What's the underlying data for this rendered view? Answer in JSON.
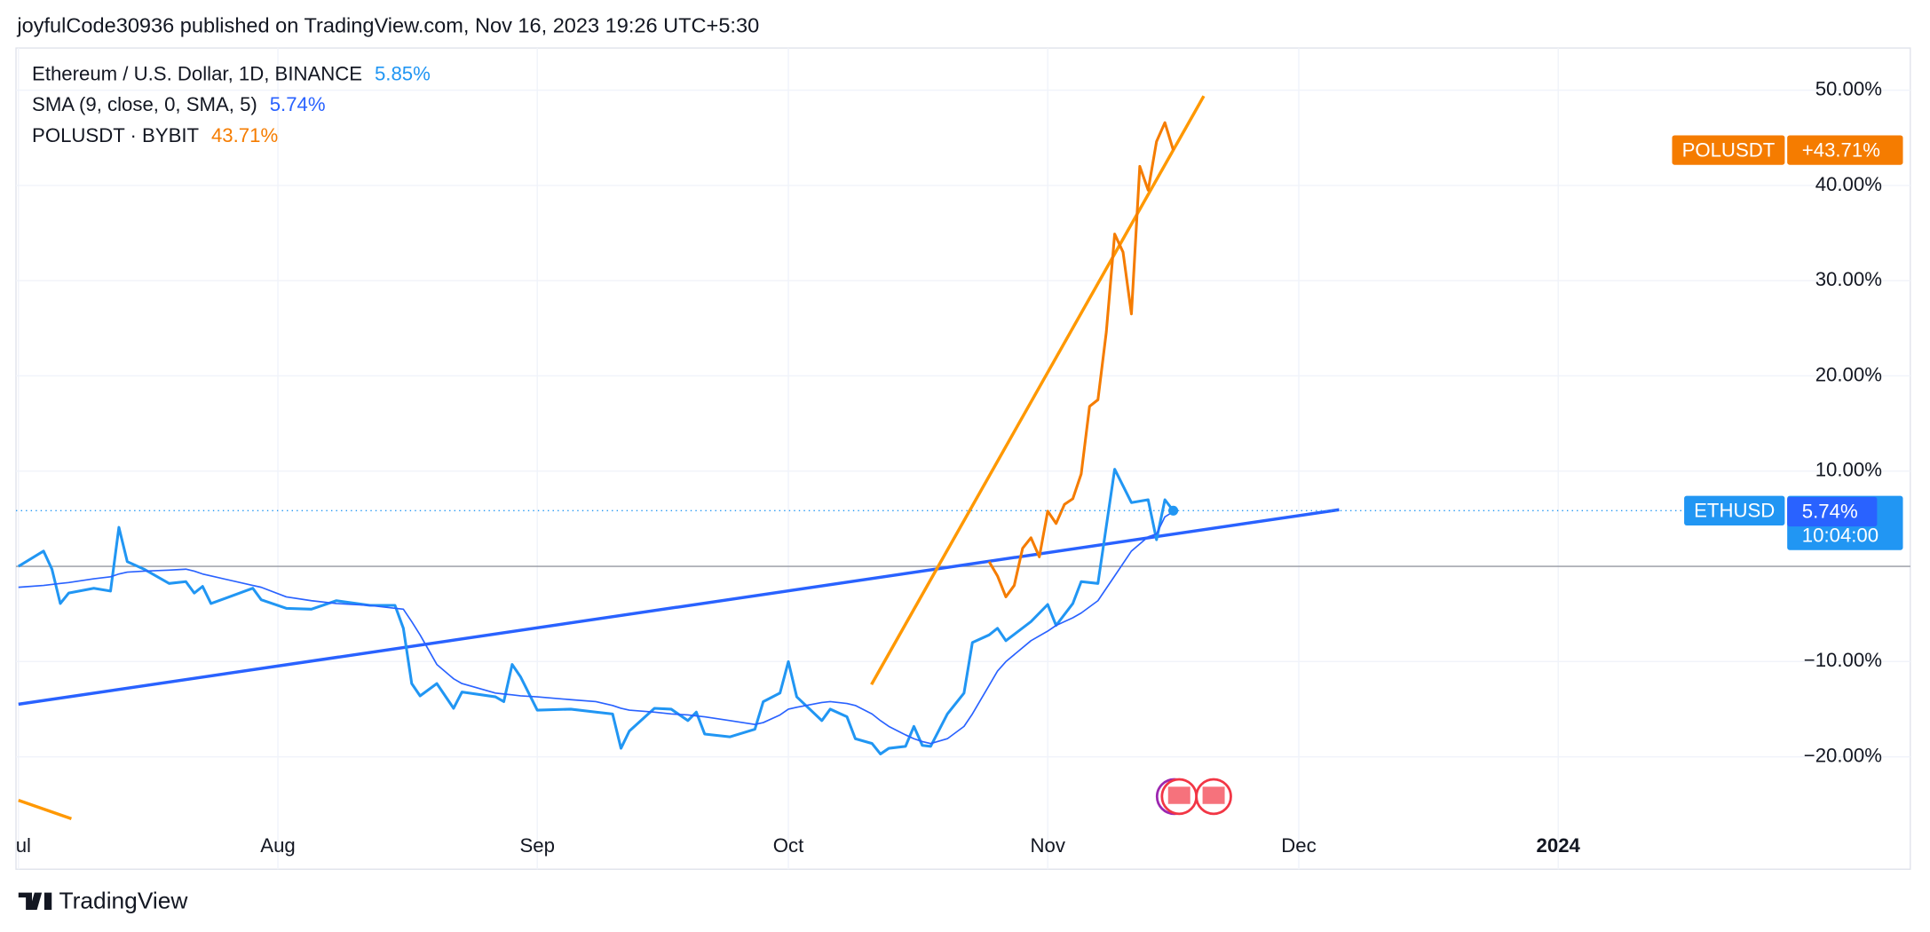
{
  "header": {
    "text": "joyfulCode30936 published on TradingView.com, Nov 16, 2023 19:26 UTC+5:30"
  },
  "footer": {
    "brand": "TradingView"
  },
  "chart_data": {
    "type": "line",
    "x": [
      0,
      3,
      4,
      5,
      6,
      9,
      11,
      12,
      13,
      15,
      18,
      20,
      21,
      22,
      23,
      28,
      29,
      32,
      35,
      38,
      42,
      45,
      46,
      47,
      48,
      50,
      52,
      53,
      57,
      58,
      59,
      60,
      62,
      66,
      69,
      71,
      72,
      73,
      76,
      78,
      80,
      81,
      82,
      85,
      88,
      89,
      91,
      92,
      93,
      96,
      97,
      99,
      100,
      102,
      103,
      104,
      106,
      107,
      108,
      109,
      111,
      113,
      114,
      116,
      117,
      118,
      121,
      123,
      124,
      126,
      127,
      129,
      131,
      133,
      135,
      136,
      137,
      138
    ],
    "xlim": [
      0,
      209.6
    ],
    "xticks": [
      {
        "value": 0,
        "label": "Jul"
      },
      {
        "value": 31,
        "label": "Aug"
      },
      {
        "value": 62,
        "label": "Sep"
      },
      {
        "value": 92,
        "label": "Oct"
      },
      {
        "value": 123,
        "label": "Nov"
      },
      {
        "value": 153,
        "label": "Dec"
      },
      {
        "value": 184,
        "label": "2024"
      }
    ],
    "ylim": [
      -31.8,
      54.3
    ],
    "yticks": [
      {
        "value": -20,
        "label": "−20.00%"
      },
      {
        "value": -10,
        "label": "−10.00%"
      },
      {
        "value": 10,
        "label": "10.00%"
      },
      {
        "value": 20,
        "label": "20.00%"
      },
      {
        "value": 30,
        "label": "30.00%"
      },
      {
        "value": 40,
        "label": "40.00%"
      },
      {
        "value": 50,
        "label": "50.00%"
      }
    ],
    "grid": true,
    "series": [
      {
        "name": "Ethereum / U.S. Dollar, 1D, BINANCE",
        "legend_value": "5.85%",
        "color": "#2196f3",
        "width": 2.2,
        "tag": {
          "symbol": "ETHUSD",
          "value": "+5.85%",
          "countdown": "10:04:00"
        },
        "values": [
          0,
          1.6,
          -0.3,
          -3.9,
          -2.8,
          -2.3,
          -2.6,
          4.1,
          0.5,
          -0.3,
          -1.8,
          -1.6,
          -2.8,
          -2.1,
          -3.9,
          -2.3,
          -3.5,
          -4.4,
          -4.5,
          -3.6,
          -4.1,
          -4.1,
          -6.5,
          -12.3,
          -13.6,
          -12.3,
          -14.9,
          -13.2,
          -13.7,
          -14.2,
          -10.3,
          -11.6,
          -15.1,
          -15.0,
          -15.3,
          -15.5,
          -19.1,
          -17.3,
          -14.9,
          -15.0,
          -16.2,
          -15.3,
          -17.6,
          -17.9,
          -17.1,
          -14.2,
          -13.3,
          -10.0,
          -13.7,
          -16.2,
          -15.0,
          -15.8,
          -18.1,
          -18.6,
          -19.7,
          -19.1,
          -18.9,
          -16.8,
          -18.8,
          -18.9,
          -15.5,
          -13.3,
          -8.0,
          -7.2,
          -6.5,
          -7.8,
          -5.8,
          -4.0,
          -6.2,
          -3.9,
          -1.6,
          -1.8,
          10.2,
          6.7,
          7.0,
          2.8,
          7.0,
          5.85
        ]
      },
      {
        "name": "SMA (9, close, 0, SMA, 5)",
        "legend_value": "5.74%",
        "color": "#2962ff",
        "width": 1.2,
        "tag": {
          "value": "5.74%"
        },
        "values": [
          -2.2,
          -2.0,
          -1.9,
          -1.8,
          -1.7,
          -1.3,
          -1.1,
          -0.8,
          -0.6,
          -0.5,
          -0.4,
          -0.3,
          -0.5,
          -0.8,
          -1.0,
          -2.0,
          -2.2,
          -3.2,
          -3.6,
          -3.9,
          -4.1,
          -4.4,
          -4.5,
          -5.8,
          -7.2,
          -10.3,
          -11.8,
          -12.3,
          -13.3,
          -13.4,
          -13.5,
          -13.6,
          -13.7,
          -14.0,
          -14.2,
          -14.6,
          -14.9,
          -15.1,
          -15.3,
          -15.5,
          -15.6,
          -15.7,
          -15.8,
          -16.2,
          -16.6,
          -16.4,
          -15.6,
          -15.0,
          -14.8,
          -14.3,
          -14.2,
          -14.4,
          -14.6,
          -15.5,
          -16.2,
          -16.8,
          -17.7,
          -18.1,
          -18.4,
          -18.6,
          -18.1,
          -16.8,
          -15.5,
          -12.5,
          -11.0,
          -10.0,
          -7.8,
          -6.8,
          -6.2,
          -5.4,
          -4.9,
          -3.6,
          -1.0,
          1.6,
          3.1,
          3.4,
          5.2,
          5.74
        ]
      },
      {
        "name": "POLUSDT · BYBIT",
        "legend_value": "43.71%",
        "color": "#f57c00",
        "width": 2.2,
        "tag": {
          "symbol": "POLUSDT",
          "value": "+43.71%"
        },
        "x": [
          116,
          117,
          118,
          119,
          120,
          121,
          122,
          123,
          124,
          125,
          126,
          127,
          128,
          129,
          130,
          131,
          132,
          133,
          134,
          135,
          136,
          137,
          138
        ],
        "values": [
          0.5,
          -1.0,
          -3.2,
          -2.0,
          1.9,
          3.0,
          1.0,
          5.8,
          4.5,
          6.5,
          7.1,
          9.7,
          16.8,
          17.5,
          24.6,
          34.9,
          33.0,
          26.5,
          42.0,
          39.5,
          44.6,
          46.6,
          43.71
        ]
      }
    ]
  }
}
